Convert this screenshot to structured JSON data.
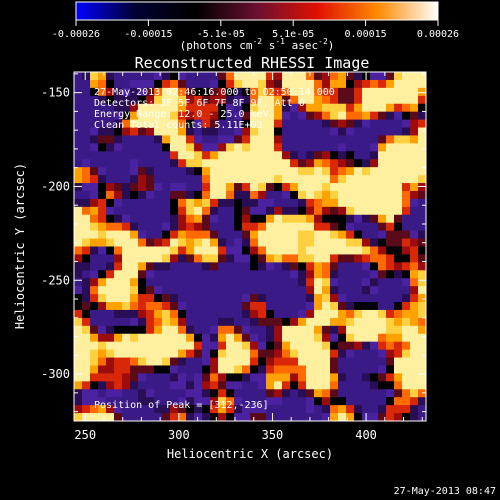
{
  "colorbar": {
    "tick_labels": [
      "-0.00026",
      "-0.00015",
      "-5.1e-05",
      "5.1e-05",
      "0.00015",
      "0.00026"
    ],
    "unit_label": "(photons cm",
    "unit_exp1": "-2",
    "unit_mid": " s",
    "unit_exp2": "-1",
    "unit_mid2": " asec",
    "unit_exp3": "-2",
    "unit_end": ")",
    "colors": [
      "#0000ff",
      "#000030",
      "#000000",
      "#6a1030",
      "#e01000",
      "#ff8a00",
      "#ffffff"
    ]
  },
  "plot": {
    "title": "Reconstructed RHESSI Image",
    "info_lines": [
      "27-May-2013 02:46:16.000 to 02:50:14.000",
      "Detectors: 3F 5F 6F 7F 8F 9F, Att 0",
      "Energy Range: 12.0 - 25.0 keV",
      "Clean    Total counts: 5.11E+03"
    ],
    "peak_label": "Position of Peak = [312,-236]",
    "x_axis_label": "Heliocentric X (arcsec)",
    "y_axis_label": "Heliocentric Y (arcsec)",
    "x_ticks": [
      "250",
      "300",
      "350",
      "400"
    ],
    "y_ticks": [
      "-150",
      "-200",
      "-250",
      "-300"
    ],
    "x_range": [
      244,
      432
    ],
    "y_range": [
      -325,
      -139
    ],
    "x_tick_values": [
      250,
      300,
      350,
      400
    ],
    "y_tick_values": [
      -150,
      -200,
      -250,
      -300
    ],
    "peak": [
      312,
      -236
    ]
  },
  "footer": {
    "timestamp": "27-May-2013 08:47"
  }
}
